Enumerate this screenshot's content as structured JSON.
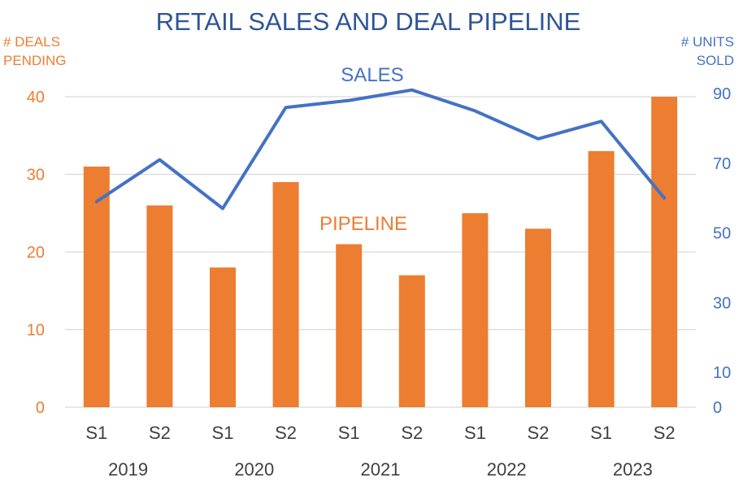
{
  "chart_data": {
    "type": "bar+line",
    "title": "RETAIL SALES AND DEAL PIPELINE",
    "ylabel_left": [
      "# DEALS",
      "PENDING"
    ],
    "ylabel_right": [
      "# UNITS",
      "SOLD"
    ],
    "categories": [
      "S1",
      "S2",
      "S1",
      "S2",
      "S1",
      "S2",
      "S1",
      "S2",
      "S1",
      "S2"
    ],
    "groups": [
      "2019",
      "2020",
      "2021",
      "2022",
      "2023"
    ],
    "y_left": {
      "min": 0,
      "max": 40,
      "ticks": [
        0,
        10,
        20,
        30,
        40
      ]
    },
    "y_right": {
      "min": 0,
      "max": 90,
      "ticks": [
        0,
        10,
        30,
        50,
        70,
        90
      ]
    },
    "grid": true,
    "series": [
      {
        "name": "PIPELINE",
        "type": "bar",
        "axis": "left",
        "values": [
          31,
          26,
          18,
          29,
          21,
          17,
          25,
          23,
          33,
          40
        ]
      },
      {
        "name": "SALES",
        "type": "line",
        "axis": "right",
        "values": [
          59,
          71,
          57,
          86,
          88,
          91,
          85,
          77,
          82,
          60
        ]
      }
    ],
    "colors": {
      "bars": "#ED7D31",
      "line": "#4472C4",
      "title": "#2E5597",
      "grid": "#D9D9D9"
    }
  }
}
